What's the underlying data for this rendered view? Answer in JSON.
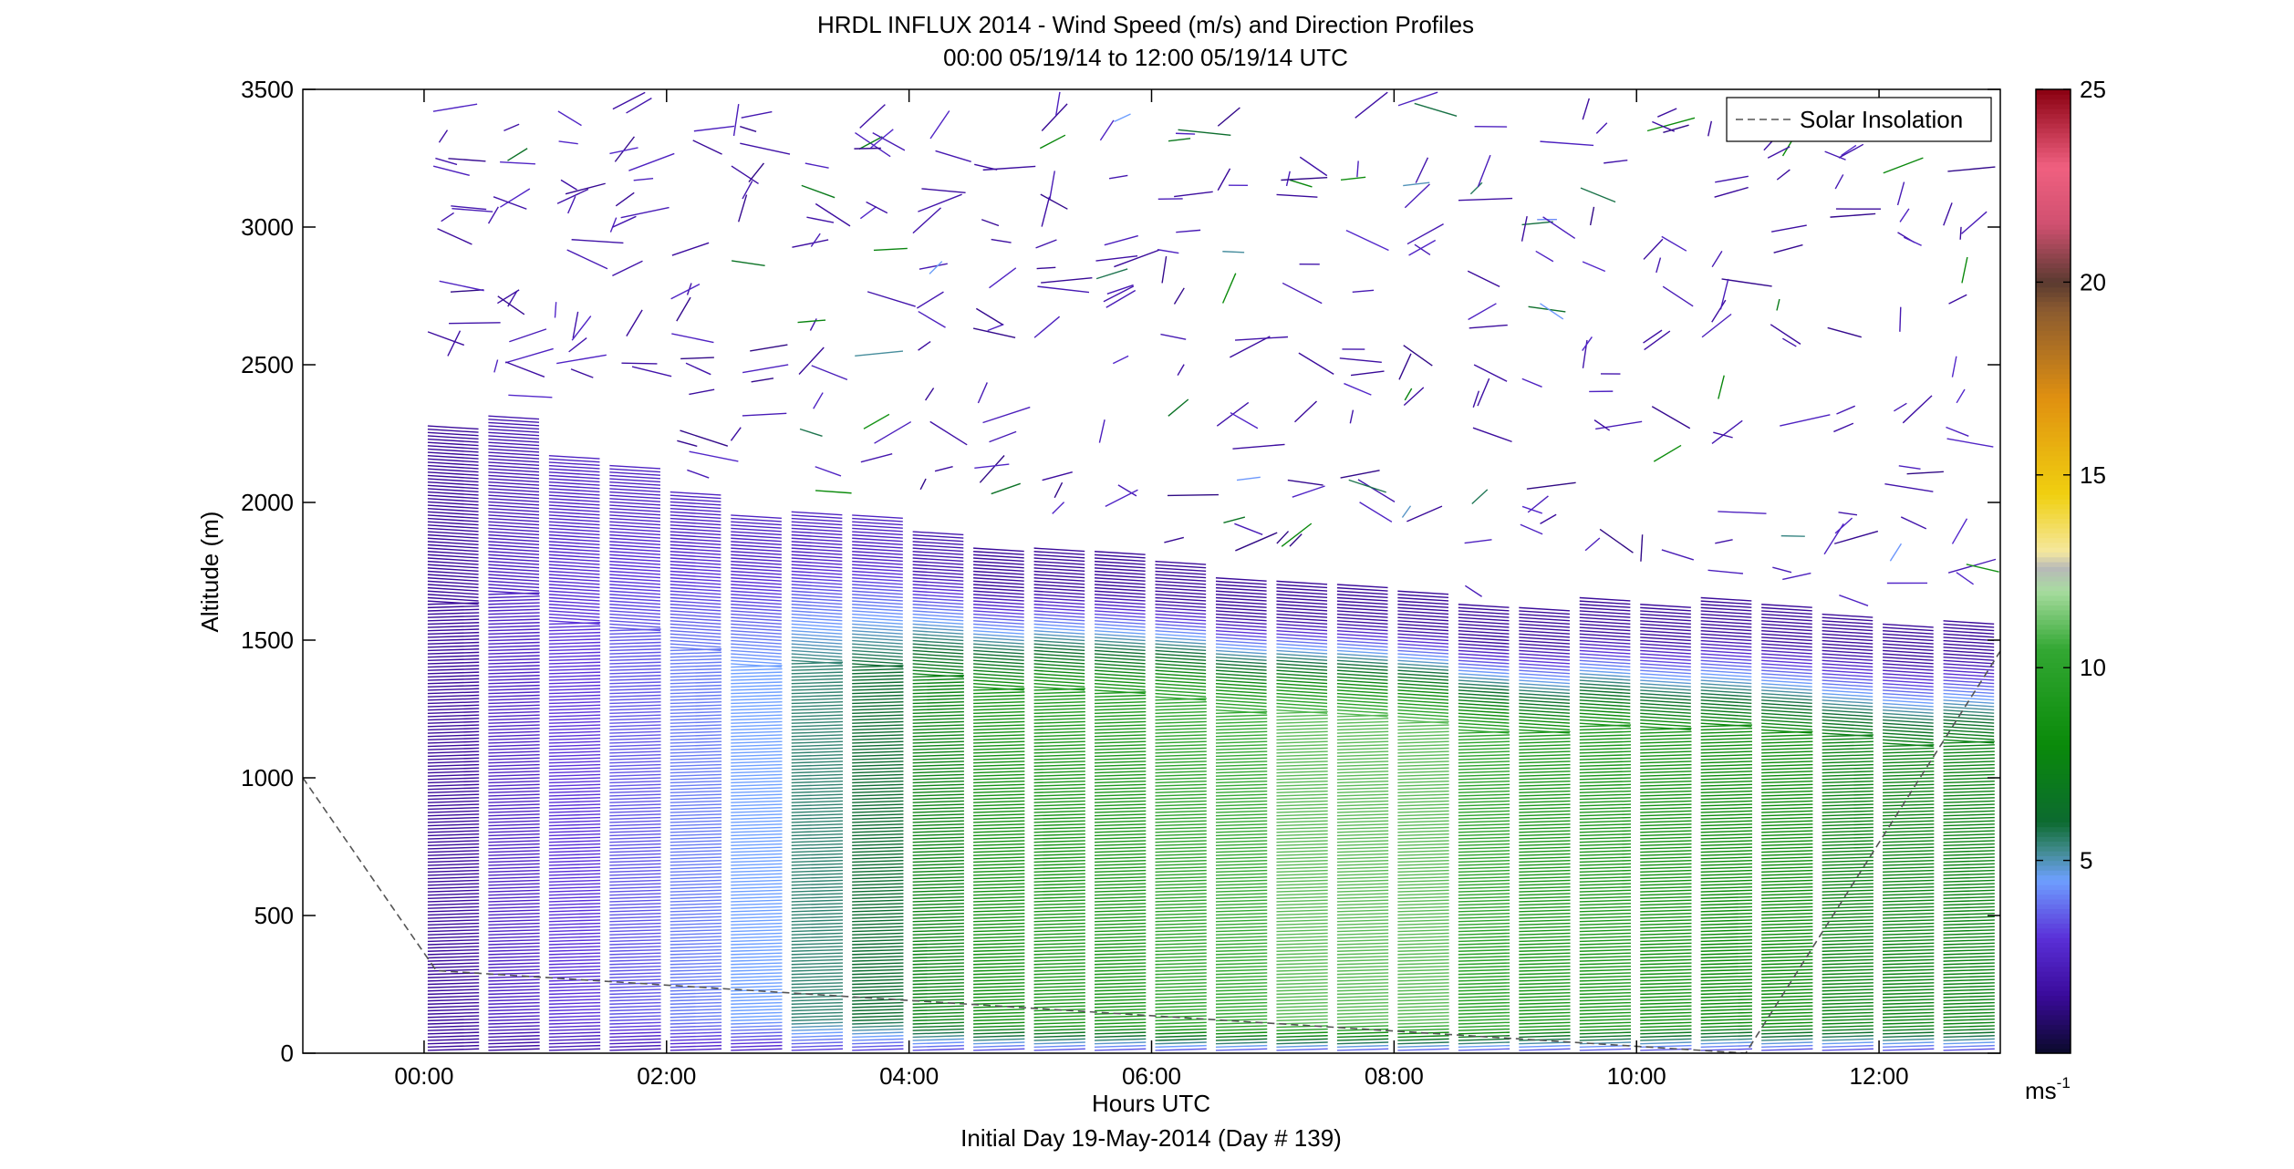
{
  "chart_data": {
    "type": "line",
    "title": "HRDL INFLUX 2014 - Wind Speed (m/s) and Direction Profiles",
    "subtitle": "00:00 05/19/14 to 12:00 05/19/14  UTC",
    "xlabel": "Hours UTC",
    "footer": "Initial Day 19-May-2014 (Day # 139)",
    "ylabel": "Altitude (m)",
    "xlim": [
      -1,
      13
    ],
    "ylim": [
      0,
      3500
    ],
    "xticks": [
      0,
      2,
      4,
      6,
      8,
      10,
      12
    ],
    "xtick_labels": [
      "00:00",
      "02:00",
      "04:00",
      "06:00",
      "08:00",
      "10:00",
      "12:00"
    ],
    "yticks": [
      0,
      500,
      1000,
      1500,
      2000,
      2500,
      3000,
      3500
    ],
    "ytick_labels": [
      "0",
      "500",
      "1000",
      "1500",
      "2000",
      "2500",
      "3000",
      "3500"
    ],
    "grid": false,
    "legend": {
      "placement": "top-right",
      "entries": [
        "Solar Insolation"
      ]
    },
    "series": [
      {
        "name": "Solar Insolation",
        "style": "dashed",
        "color": "#555555",
        "x": [
          -1,
          0.1,
          10.9,
          13
        ],
        "y": [
          1000,
          300,
          0,
          1460
        ]
      }
    ],
    "profiles": {
      "times": [
        0.0,
        0.5,
        1.0,
        1.5,
        2.0,
        2.5,
        3.0,
        3.5,
        4.0,
        4.5,
        5.0,
        5.5,
        6.0,
        6.5,
        7.0,
        7.5,
        8.0,
        8.5,
        9.0,
        9.5,
        10.0,
        10.5,
        11.0,
        11.5,
        12.0,
        12.5
      ],
      "top_m": [
        2280,
        2320,
        2180,
        2140,
        2040,
        1960,
        1970,
        1960,
        1900,
        1840,
        1840,
        1830,
        1790,
        1730,
        1720,
        1710,
        1680,
        1630,
        1620,
        1660,
        1640,
        1660,
        1630,
        1600,
        1560,
        1580
      ],
      "low_speed_ms": [
        1.5,
        2.5,
        3.0,
        3.5,
        4.0,
        4.5,
        5.5,
        6.0,
        7.5,
        8.5,
        9.0,
        9.0,
        10.0,
        10.5,
        11.0,
        11.0,
        11.0,
        10.0,
        9.0,
        9.0,
        8.5,
        8.0,
        8.0,
        7.5,
        7.5,
        7.5
      ],
      "bottom_speed_ms": [
        1.5,
        1.5,
        2.0,
        2.0,
        2.5,
        2.5,
        3.0,
        3.0,
        3.0,
        3.0,
        3.0,
        3.0,
        3.0,
        3.0,
        3.0,
        3.0,
        3.0,
        3.0,
        3.0,
        3.0,
        3.0,
        3.0,
        3.0,
        3.0,
        3.0,
        3.0
      ],
      "upper_speed_ms": [
        1.5,
        2.0,
        2.5,
        2.5,
        2.5,
        2.5,
        2.5,
        2.5,
        2.0,
        1.5,
        1.5,
        1.5,
        1.5,
        1.5,
        1.5,
        1.5,
        1.5,
        1.5,
        1.5,
        1.5,
        1.5,
        1.5,
        1.5,
        1.5,
        1.5,
        1.5
      ],
      "direction_deg_lower": 95,
      "direction_deg_upper": 80
    },
    "colorbar": {
      "label": "ms-1",
      "unit_base": "ms",
      "unit_exp": "-1",
      "range": [
        0,
        25
      ],
      "ticks": [
        5,
        10,
        15,
        20,
        25
      ],
      "tick_labels": [
        "5",
        "10",
        "15",
        "20",
        "25"
      ],
      "stops": [
        {
          "v": 0,
          "c": "#0a0a2a"
        },
        {
          "v": 1.5,
          "c": "#3a0a9a"
        },
        {
          "v": 3,
          "c": "#5a30d8"
        },
        {
          "v": 4.5,
          "c": "#6ea0ff"
        },
        {
          "v": 5.3,
          "c": "#3f8a8a"
        },
        {
          "v": 6,
          "c": "#0c6a30"
        },
        {
          "v": 8,
          "c": "#0a8a0a"
        },
        {
          "v": 10.5,
          "c": "#33a833"
        },
        {
          "v": 12,
          "c": "#a8dca0"
        },
        {
          "v": 12.6,
          "c": "#b8b8b8"
        },
        {
          "v": 13,
          "c": "#f5e8a0"
        },
        {
          "v": 14.5,
          "c": "#f0d010"
        },
        {
          "v": 17,
          "c": "#e09010"
        },
        {
          "v": 19.3,
          "c": "#8a5a30"
        },
        {
          "v": 20,
          "c": "#5a3a30"
        },
        {
          "v": 21.5,
          "c": "#d05070"
        },
        {
          "v": 23,
          "c": "#f06080"
        },
        {
          "v": 25,
          "c": "#8a0010"
        }
      ]
    }
  }
}
